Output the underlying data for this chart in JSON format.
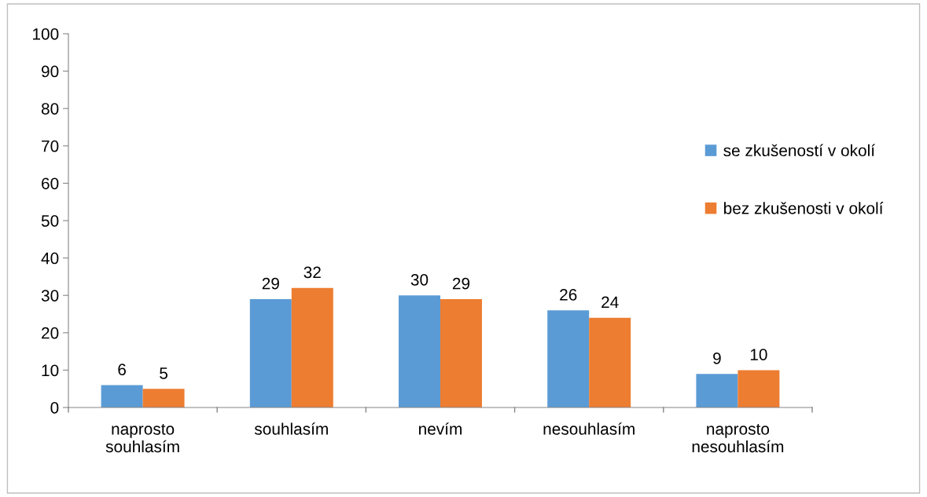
{
  "chart_data": {
    "type": "bar",
    "categories": [
      "naprosto\nsouhlasím",
      "souhlasím",
      "nevím",
      "nesouhlasím",
      "naprosto\nnesouhlasím"
    ],
    "series": [
      {
        "name": "se zkušeností v okolí",
        "color": "#5b9bd5",
        "values": [
          6,
          29,
          30,
          26,
          9
        ]
      },
      {
        "name": "bez zkušenosti v okolí",
        "color": "#ed7d31",
        "values": [
          5,
          32,
          29,
          24,
          10
        ]
      }
    ],
    "ylim": [
      0,
      100
    ],
    "yticks": [
      0,
      10,
      20,
      30,
      40,
      50,
      60,
      70,
      80,
      90,
      100
    ],
    "grid": false,
    "legend": "right",
    "data_labels": true
  }
}
